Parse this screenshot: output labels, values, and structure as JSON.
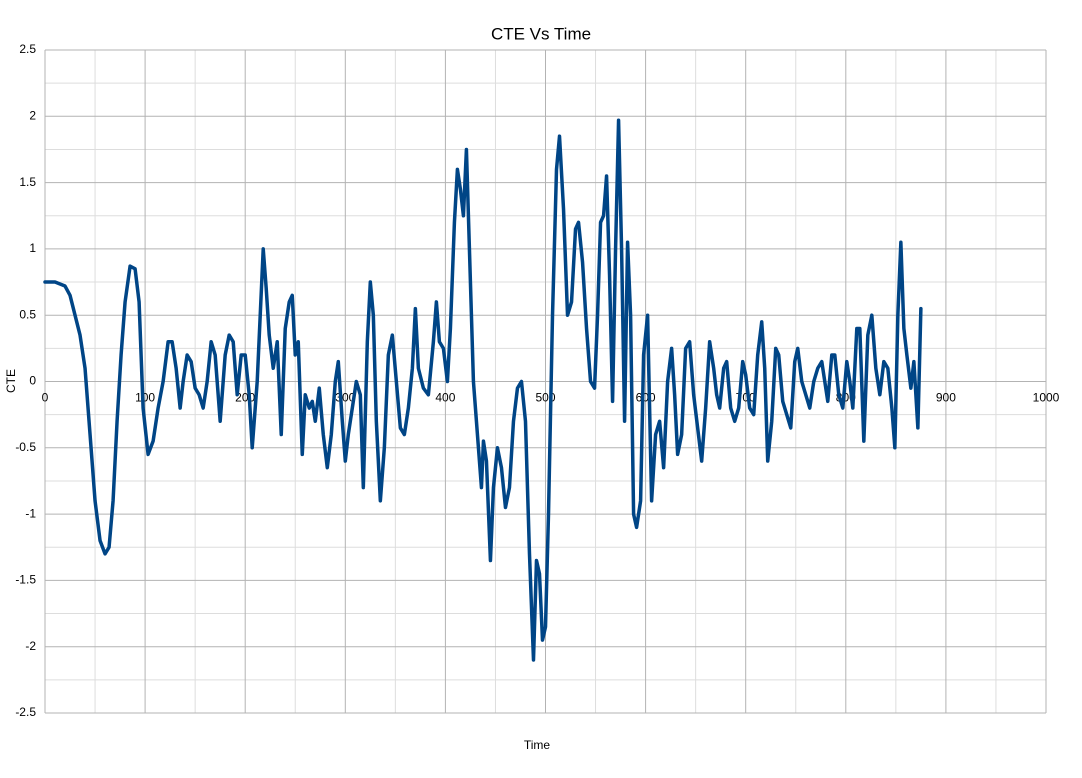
{
  "chart_data": {
    "type": "line",
    "title": "CTE Vs Time",
    "x_label": "Time",
    "y_label": "CTE",
    "color": "#004586",
    "grid": true,
    "minor_grid": true,
    "xlim": [
      0,
      1000
    ],
    "xticks": [
      0,
      100,
      200,
      300,
      400,
      500,
      600,
      700,
      800,
      900,
      1000
    ],
    "ylim": [
      -2.5,
      2.5
    ],
    "yticks": [
      -2.5,
      -2,
      -1.5,
      -1,
      -0.5,
      0,
      0.5,
      1,
      1.5,
      2,
      2.5
    ],
    "x": [
      0,
      10,
      20,
      25,
      30,
      35,
      40,
      45,
      50,
      55,
      60,
      64,
      68,
      72,
      76,
      80,
      85,
      90,
      94,
      98,
      103,
      108,
      113,
      118,
      123,
      127,
      131,
      135,
      138,
      142,
      146,
      150,
      154,
      158,
      162,
      166,
      170,
      175,
      180,
      184,
      188,
      192,
      196,
      200,
      204,
      207,
      212,
      215,
      218,
      221,
      224,
      228,
      232,
      236,
      240,
      244,
      247,
      250,
      253,
      257,
      260,
      264,
      267,
      270,
      274,
      278,
      282,
      286,
      290,
      293,
      297,
      300,
      303,
      307,
      311,
      315,
      318,
      322,
      325,
      328,
      331,
      335,
      339,
      343,
      347,
      351,
      355,
      359,
      363,
      367,
      370,
      373,
      378,
      383,
      388,
      391,
      394,
      398,
      402,
      405,
      409,
      412,
      415,
      418,
      421,
      424,
      428,
      432,
      436,
      438,
      441,
      445,
      448,
      452,
      456,
      460,
      464,
      468,
      472,
      476,
      480,
      484,
      488,
      491,
      494,
      497,
      500,
      503,
      507,
      511,
      514,
      518,
      522,
      526,
      530,
      533,
      537,
      541,
      545,
      549,
      552,
      555,
      558,
      561,
      564,
      567,
      570,
      573,
      576,
      579,
      582,
      585,
      588,
      591,
      595,
      598,
      602,
      606,
      610,
      614,
      618,
      622,
      626,
      629,
      632,
      636,
      640,
      644,
      648,
      652,
      656,
      660,
      664,
      668,
      671,
      674,
      678,
      681,
      685,
      689,
      693,
      697,
      700,
      704,
      708,
      712,
      716,
      719,
      722,
      726,
      730,
      733,
      737,
      741,
      745,
      749,
      752,
      756,
      760,
      764,
      768,
      772,
      776,
      779,
      782,
      786,
      789,
      793,
      797,
      801,
      804,
      807,
      811,
      814,
      818,
      822,
      826,
      830,
      834,
      838,
      842,
      846,
      849,
      852,
      855,
      858,
      861,
      865,
      868,
      872,
      875
    ],
    "values": [
      0.75,
      0.75,
      0.72,
      0.65,
      0.5,
      0.35,
      0.1,
      -0.4,
      -0.9,
      -1.2,
      -1.3,
      -1.25,
      -0.9,
      -0.3,
      0.2,
      0.6,
      0.87,
      0.85,
      0.6,
      -0.2,
      -0.55,
      -0.45,
      -0.2,
      0,
      0.3,
      0.3,
      0.1,
      -0.2,
      0,
      0.2,
      0.15,
      -0.05,
      -0.1,
      -0.2,
      0,
      0.3,
      0.2,
      -0.3,
      0.2,
      0.35,
      0.3,
      -0.1,
      0.2,
      0.2,
      -0.1,
      -0.5,
      0,
      0.5,
      1,
      0.7,
      0.35,
      0.1,
      0.3,
      -0.4,
      0.4,
      0.6,
      0.65,
      0.2,
      0.3,
      -0.55,
      -0.1,
      -0.2,
      -0.15,
      -0.3,
      -0.05,
      -0.4,
      -0.65,
      -0.4,
      0,
      0.15,
      -0.3,
      -0.6,
      -0.4,
      -0.2,
      0,
      -0.1,
      -0.8,
      0.3,
      0.75,
      0.5,
      -0.3,
      -0.9,
      -0.5,
      0.2,
      0.35,
      0,
      -0.35,
      -0.4,
      -0.2,
      0.1,
      0.55,
      0.1,
      -0.05,
      -0.1,
      0.3,
      0.6,
      0.3,
      0.25,
      0,
      0.4,
      1.2,
      1.6,
      1.45,
      1.25,
      1.75,
      1,
      0,
      -0.4,
      -0.8,
      -0.45,
      -0.6,
      -1.35,
      -0.8,
      -0.5,
      -0.65,
      -0.95,
      -0.8,
      -0.3,
      -0.05,
      0,
      -0.3,
      -1.3,
      -2.1,
      -1.35,
      -1.45,
      -1.95,
      -1.85,
      -1,
      0.5,
      1.6,
      1.85,
      1.3,
      0.5,
      0.6,
      1.15,
      1.2,
      0.9,
      0.4,
      0,
      -0.05,
      0.5,
      1.2,
      1.25,
      1.55,
      0.8,
      -0.15,
      1,
      1.97,
      1,
      -0.3,
      1.05,
      0.5,
      -1,
      -1.1,
      -0.9,
      0.2,
      0.5,
      -0.9,
      -0.4,
      -0.3,
      -0.65,
      0,
      0.25,
      -0.1,
      -0.55,
      -0.4,
      0.25,
      0.3,
      -0.1,
      -0.35,
      -0.6,
      -0.2,
      0.3,
      0.1,
      -0.1,
      -0.2,
      0.1,
      0.15,
      -0.2,
      -0.3,
      -0.2,
      0.15,
      0.05,
      -0.2,
      -0.25,
      0.2,
      0.45,
      0.1,
      -0.6,
      -0.3,
      0.25,
      0.2,
      -0.15,
      -0.25,
      -0.35,
      0.15,
      0.25,
      0,
      -0.1,
      -0.2,
      0,
      0.1,
      0.15,
      0,
      -0.15,
      0.2,
      0.2,
      -0.1,
      -0.2,
      0.15,
      0,
      -0.2,
      0.4,
      0.4,
      -0.45,
      0.35,
      0.5,
      0.1,
      -0.1,
      0.15,
      0.1,
      -0.2,
      -0.5,
      0.5,
      1.05,
      0.4,
      0.2,
      -0.05,
      0.15,
      -0.35,
      0.55
    ]
  }
}
